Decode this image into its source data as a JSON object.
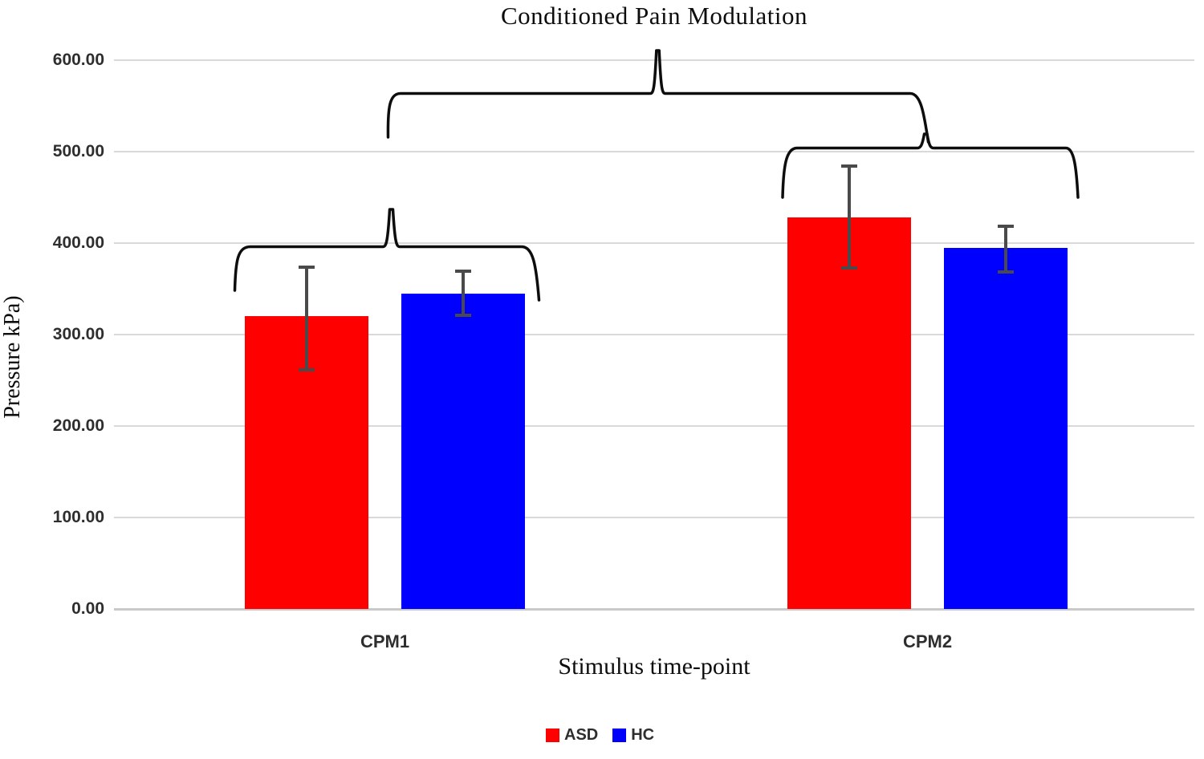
{
  "chart": {
    "title": "Conditioned Pain Modulation",
    "y_axis": {
      "label": "Pressure kPa)",
      "tick_labels": [
        "600.00",
        "500.00",
        "400.00",
        "300.00",
        "200.00",
        "100.00",
        "0.00"
      ]
    },
    "x_axis": {
      "label": "Stimulus time-point",
      "categories": [
        "CPM1",
        "CPM2"
      ]
    },
    "legend": {
      "items": [
        {
          "label": "ASD",
          "color": "#ff0000"
        },
        {
          "label": "HC",
          "color": "#0000ff"
        }
      ]
    }
  },
  "chart_data": {
    "type": "bar",
    "title": "Conditioned Pain Modulation",
    "xlabel": "Stimulus time-point",
    "ylabel": "Pressure kPa)",
    "categories": [
      "CPM1",
      "CPM2"
    ],
    "series": [
      {
        "name": "ASD",
        "color": "#ff0000",
        "values": [
          320,
          428
        ],
        "error_low": [
          261,
          373
        ],
        "error_high": [
          374,
          484
        ]
      },
      {
        "name": "HC",
        "color": "#0000ff",
        "values": [
          345,
          395
        ],
        "error_low": [
          321,
          368
        ],
        "error_high": [
          369,
          418
        ]
      }
    ],
    "ylim": [
      0,
      600
    ],
    "y_tick_step": 100,
    "grid": "horizontal",
    "error_bars": true,
    "legend_position": "bottom",
    "annotations": [
      {
        "type": "brace",
        "compares": "ASD vs HC within CPM1"
      },
      {
        "type": "brace",
        "compares": "ASD vs HC within CPM2"
      },
      {
        "type": "brace",
        "compares": "CPM1 vs CPM2 overall"
      }
    ]
  }
}
